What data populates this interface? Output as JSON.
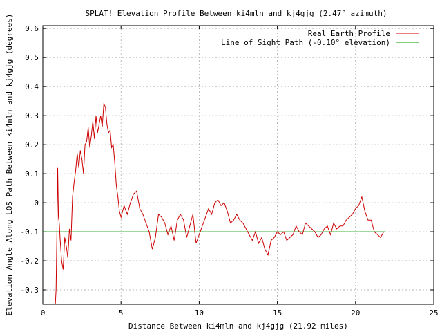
{
  "chart_data": {
    "type": "line",
    "title": "SPLAT! Elevation Profile Between ki4mln and kj4gjg (2.47° azimuth)",
    "xlabel": "Distance Between ki4mln and kj4gjg (21.92 miles)",
    "ylabel": "Elevation Angle Along LOS Path Between ki4mln and kj4gjg (degrees)",
    "xlim": [
      0,
      25
    ],
    "ylim": [
      -0.35,
      0.61
    ],
    "x_ticks": [
      0,
      5,
      10,
      15,
      20,
      25
    ],
    "y_ticks": [
      -0.3,
      -0.2,
      -0.1,
      0,
      0.1,
      0.2,
      0.3,
      0.4,
      0.5,
      0.6
    ],
    "x_tick_labels": [
      "0",
      "5",
      "10",
      "15",
      "20",
      "25"
    ],
    "y_tick_labels": [
      "-0.3",
      "-0.2",
      "-0.1",
      "0",
      "0.1",
      "0.2",
      "0.3",
      "0.4",
      "0.5",
      "0.6"
    ],
    "grid": true,
    "legend_position": "top-right",
    "series": [
      {
        "name": "Real Earth Profile",
        "color": "#cc0000",
        "x": [
          0.8,
          0.85,
          0.9,
          0.95,
          1.0,
          1.05,
          1.1,
          1.2,
          1.3,
          1.4,
          1.5,
          1.6,
          1.7,
          1.8,
          1.9,
          2.0,
          2.1,
          2.2,
          2.3,
          2.4,
          2.5,
          2.6,
          2.7,
          2.8,
          2.9,
          3.0,
          3.1,
          3.2,
          3.3,
          3.4,
          3.5,
          3.6,
          3.7,
          3.8,
          3.9,
          4.0,
          4.1,
          4.2,
          4.3,
          4.4,
          4.5,
          4.6,
          4.7,
          4.8,
          4.9,
          5.0,
          5.2,
          5.4,
          5.6,
          5.8,
          6.0,
          6.2,
          6.4,
          6.6,
          6.8,
          7.0,
          7.2,
          7.4,
          7.6,
          7.8,
          8.0,
          8.2,
          8.4,
          8.6,
          8.8,
          9.0,
          9.2,
          9.4,
          9.6,
          9.8,
          10.0,
          10.2,
          10.4,
          10.6,
          10.8,
          11.0,
          11.2,
          11.4,
          11.6,
          11.8,
          12.0,
          12.2,
          12.4,
          12.6,
          12.8,
          13.0,
          13.2,
          13.4,
          13.6,
          13.8,
          14.0,
          14.2,
          14.4,
          14.6,
          14.8,
          15.0,
          15.2,
          15.4,
          15.6,
          15.8,
          16.0,
          16.2,
          16.4,
          16.6,
          16.8,
          17.0,
          17.2,
          17.4,
          17.6,
          17.8,
          18.0,
          18.2,
          18.4,
          18.6,
          18.8,
          19.0,
          19.2,
          19.4,
          19.6,
          19.8,
          20.0,
          20.2,
          20.4,
          20.6,
          20.8,
          21.0,
          21.2,
          21.4,
          21.6,
          21.8
        ],
        "y": [
          -0.35,
          -0.3,
          -0.1,
          0.12,
          -0.05,
          -0.07,
          -0.12,
          -0.2,
          -0.23,
          -0.12,
          -0.15,
          -0.19,
          -0.09,
          -0.13,
          0.02,
          0.07,
          0.11,
          0.17,
          0.12,
          0.18,
          0.15,
          0.1,
          0.2,
          0.21,
          0.26,
          0.19,
          0.23,
          0.28,
          0.22,
          0.3,
          0.24,
          0.27,
          0.3,
          0.26,
          0.34,
          0.33,
          0.27,
          0.24,
          0.25,
          0.19,
          0.2,
          0.14,
          0.06,
          0.02,
          -0.03,
          -0.05,
          -0.01,
          -0.04,
          0.0,
          0.03,
          0.04,
          -0.02,
          -0.04,
          -0.07,
          -0.1,
          -0.16,
          -0.12,
          -0.04,
          -0.05,
          -0.07,
          -0.11,
          -0.08,
          -0.13,
          -0.06,
          -0.04,
          -0.06,
          -0.12,
          -0.08,
          -0.04,
          -0.14,
          -0.11,
          -0.08,
          -0.05,
          -0.02,
          -0.04,
          0.0,
          0.01,
          -0.01,
          0.0,
          -0.03,
          -0.07,
          -0.06,
          -0.04,
          -0.06,
          -0.07,
          -0.09,
          -0.11,
          -0.13,
          -0.1,
          -0.14,
          -0.12,
          -0.16,
          -0.18,
          -0.13,
          -0.12,
          -0.1,
          -0.11,
          -0.1,
          -0.13,
          -0.12,
          -0.11,
          -0.08,
          -0.1,
          -0.11,
          -0.07,
          -0.08,
          -0.09,
          -0.1,
          -0.12,
          -0.11,
          -0.09,
          -0.08,
          -0.11,
          -0.07,
          -0.09,
          -0.08,
          -0.08,
          -0.06,
          -0.05,
          -0.04,
          -0.02,
          -0.01,
          0.02,
          -0.03,
          -0.06,
          -0.06,
          -0.1,
          -0.11,
          -0.12,
          -0.1
        ]
      },
      {
        "name": "Line of Sight Path (-0.10° elevation)",
        "color": "#00a000",
        "x": [
          0,
          21.92
        ],
        "y": [
          -0.1,
          -0.1
        ]
      }
    ]
  }
}
